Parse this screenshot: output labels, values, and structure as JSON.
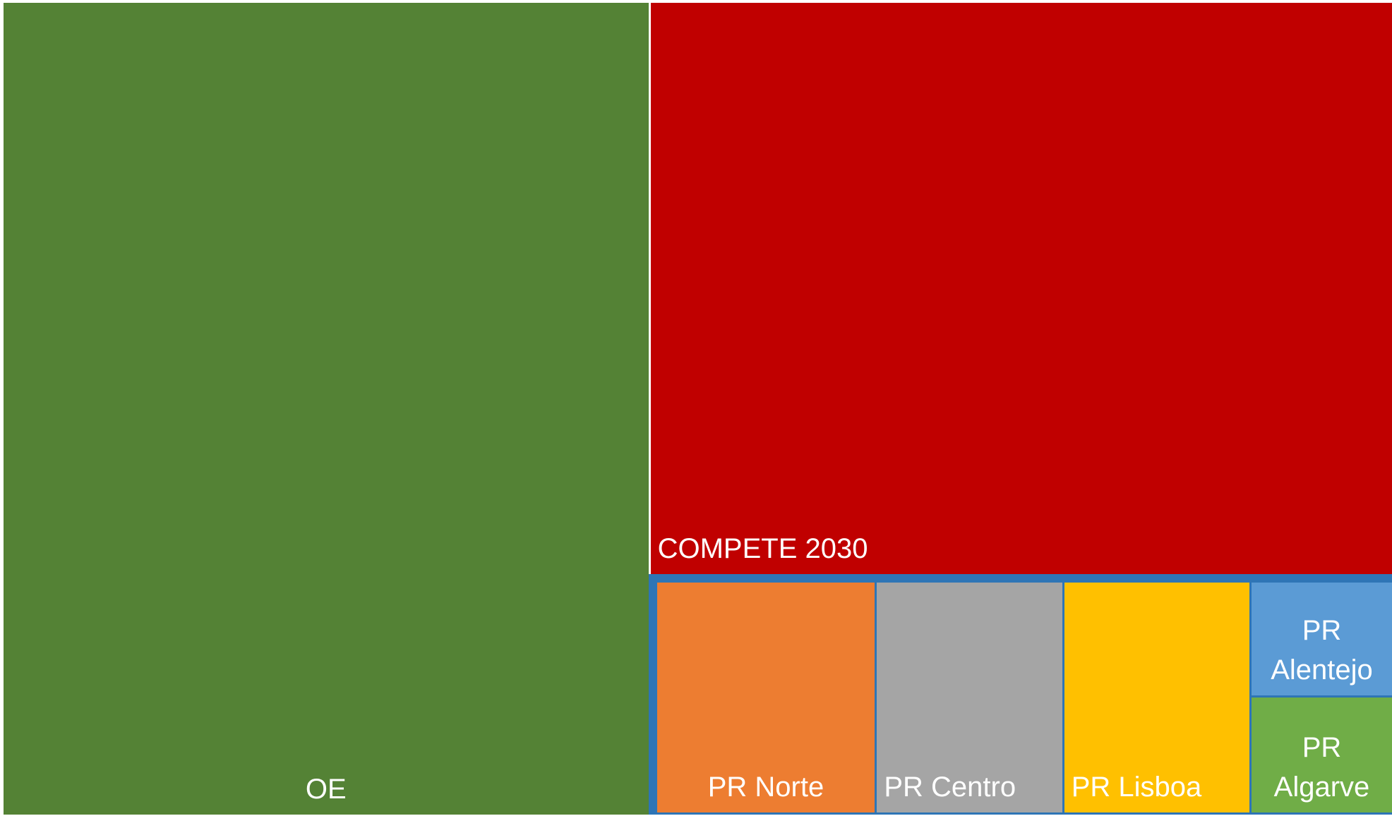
{
  "chart_data": {
    "type": "treemap",
    "categories": [
      "OE",
      "COMPETE 2030",
      "PR Norte",
      "PR Centro",
      "PR Lisboa",
      "PR Alentejo",
      "PR Algarve"
    ],
    "values": [
      46.6,
      37.7,
      4.7,
      4.0,
      4.0,
      1.5,
      1.5
    ],
    "colors": [
      "#548235",
      "#c00000",
      "#ed7d31",
      "#a5a5a5",
      "#ffc000",
      "#5b9bd5",
      "#70ad47"
    ],
    "group_color": "#2e75b6"
  }
}
